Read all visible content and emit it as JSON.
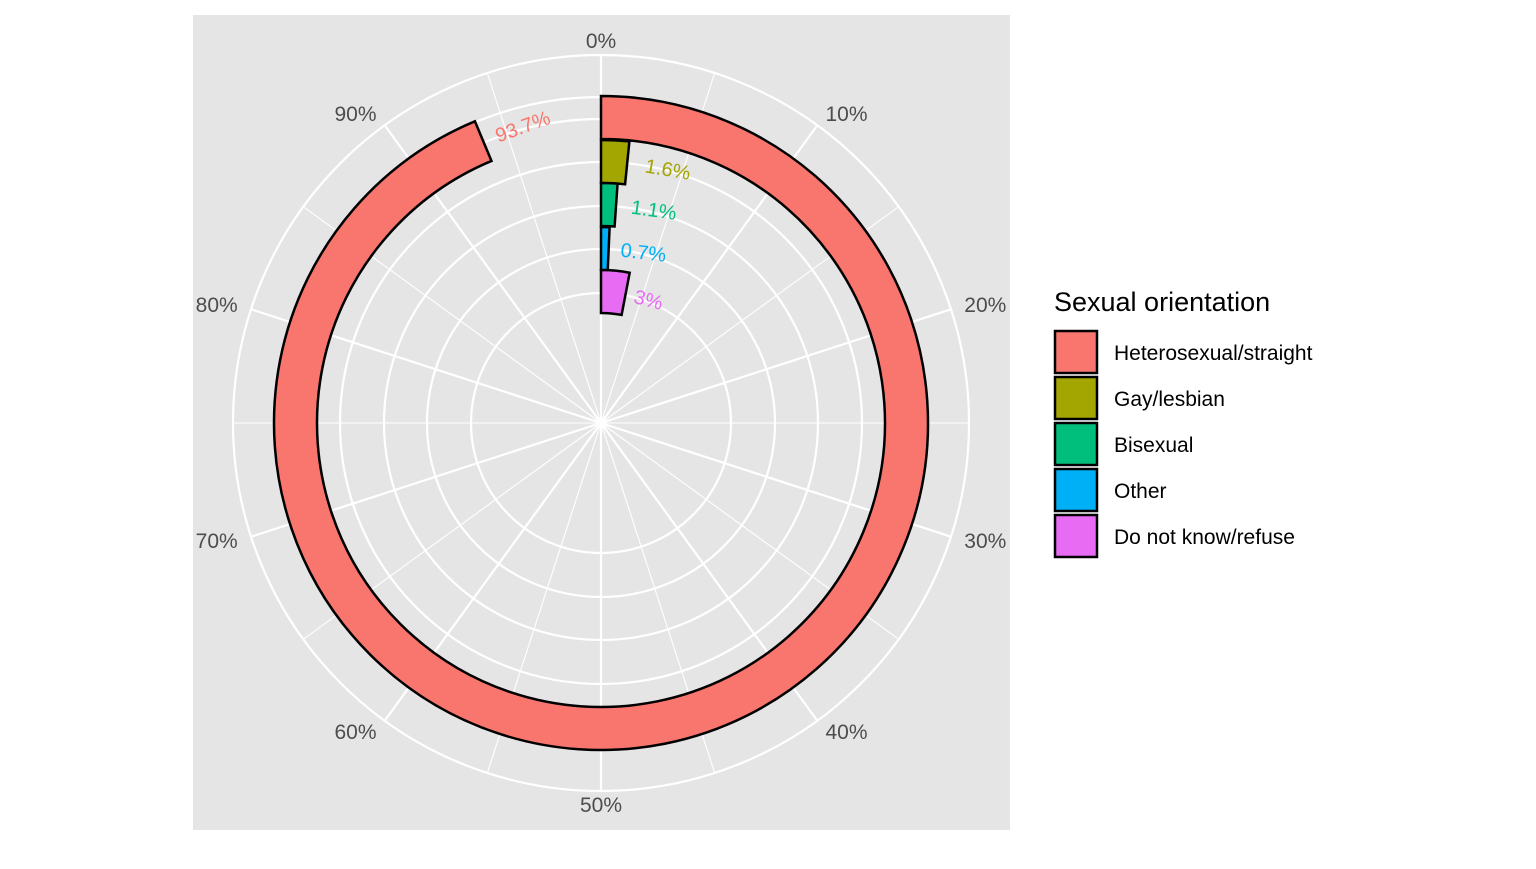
{
  "chart_data": {
    "type": "radial_bar",
    "categories": [
      "Heterosexual/straight",
      "Gay/lesbian",
      "Bisexual",
      "Other",
      "Do not know/refuse"
    ],
    "values": [
      93.7,
      1.6,
      1.1,
      0.7,
      3
    ],
    "value_labels": [
      "93.7%",
      "1.6%",
      "1.1%",
      "0.7%",
      "3%"
    ],
    "colors": [
      "#F8766D",
      "#A3A500",
      "#00BF7D",
      "#00B0F6",
      "#E76BF3"
    ],
    "label_colors": [
      "#F8766D",
      "#A3A500",
      "#00BF7D",
      "#00B0F6",
      "#E76BF3"
    ],
    "angle_axis": {
      "ticks": [
        "0%",
        "10%",
        "20%",
        "30%",
        "40%",
        "50%",
        "60%",
        "70%",
        "80%",
        "90%"
      ],
      "range": [
        0,
        100
      ]
    },
    "grid": true,
    "legend": {
      "title": "Sexual orientation",
      "position": "right",
      "entries": [
        "Heterosexual/straight",
        "Gay/lesbian",
        "Bisexual",
        "Other",
        "Do not know/refuse"
      ]
    }
  }
}
